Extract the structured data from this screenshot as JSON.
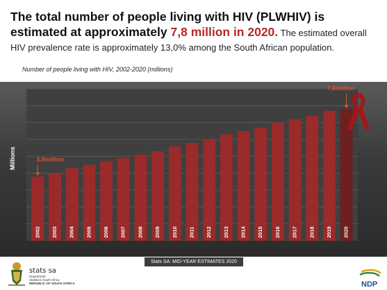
{
  "headline": {
    "part1": "The total number of people living with HIV (PLWHIV) is estimated at approximately ",
    "highlight": "7,8 million in 2020.",
    "part2": " The estimated overall HIV prevalence rate is approximately 13,0% among the South African population."
  },
  "footer": {
    "source": "Stats SA: MID-YEAR ESTIMATES 2020",
    "org_name": "stats sa",
    "org_dept_1": "Department:",
    "org_dept_2": "Statistics South Africa",
    "org_country": "REPUBLIC OF SOUTH AFRICA",
    "ndp_logo_text": "NDP"
  },
  "colors": {
    "bar": "#9b2a2a",
    "bar_highlight": "#6e1f1f",
    "accent": "#b52a2a",
    "panel": "#3a3a3a"
  },
  "chart_data": {
    "type": "bar",
    "title": "Number of people living with HIV, 2002-2020 (millions)",
    "xlabel": "",
    "ylabel": "Millions",
    "categories": [
      "2002",
      "2003",
      "2004",
      "2005",
      "2006",
      "2007",
      "2008",
      "2009",
      "2010",
      "2011",
      "2012",
      "2013",
      "2014",
      "2015",
      "2016",
      "2017",
      "2018",
      "2019",
      "2020"
    ],
    "values": [
      3.8,
      4.0,
      4.3,
      4.5,
      4.7,
      4.9,
      5.1,
      5.3,
      5.6,
      5.8,
      6.0,
      6.3,
      6.5,
      6.7,
      7.0,
      7.2,
      7.4,
      7.7,
      7.8
    ],
    "ylim": [
      0,
      9
    ],
    "grid": true,
    "annotations": [
      {
        "label": "3,8million",
        "category": "2002"
      },
      {
        "label": "7,8million",
        "category": "2020"
      }
    ]
  }
}
